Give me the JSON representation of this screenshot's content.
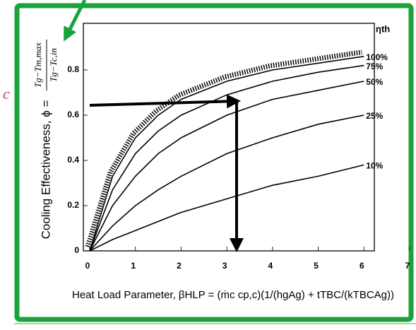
{
  "chart_data": {
    "type": "line",
    "x": [
      0,
      0.5,
      1,
      1.5,
      2,
      3,
      4,
      5,
      6
    ],
    "series": [
      {
        "name": "100%",
        "color": "#000000",
        "values": [
          0,
          0.33,
          0.5,
          0.6,
          0.67,
          0.75,
          0.8,
          0.83,
          0.86
        ]
      },
      {
        "name": "75%",
        "color": "#000000",
        "values": [
          0,
          0.27,
          0.43,
          0.53,
          0.6,
          0.69,
          0.75,
          0.79,
          0.82
        ]
      },
      {
        "name": "50%",
        "color": "#000000",
        "values": [
          0,
          0.2,
          0.33,
          0.43,
          0.5,
          0.6,
          0.67,
          0.71,
          0.75
        ]
      },
      {
        "name": "25%",
        "color": "#000000",
        "values": [
          0,
          0.11,
          0.2,
          0.27,
          0.33,
          0.43,
          0.5,
          0.56,
          0.6
        ]
      },
      {
        "name": "10%",
        "color": "#000000",
        "values": [
          0,
          0.05,
          0.09,
          0.13,
          0.17,
          0.23,
          0.29,
          0.33,
          0.38
        ]
      }
    ],
    "legend_title": "ηth",
    "xlim": [
      0,
      7
    ],
    "xticks": [
      0,
      1,
      2,
      3,
      4,
      5,
      6,
      7
    ],
    "ylim": [
      0,
      1
    ],
    "yticks": [
      0,
      0.2,
      0.4,
      0.6,
      0.8
    ],
    "y_label": "Cooling Effectiveness, ϕ = ",
    "y_label_numerator": "Tg−Tm,max",
    "y_label_denominator": "Tg−Tc,in",
    "x_label": "Heat Load Parameter, βHLP = (ṁc cp,c)(1/(hgAg) + tTBC/(kTBCAg))",
    "fragment": "c"
  }
}
